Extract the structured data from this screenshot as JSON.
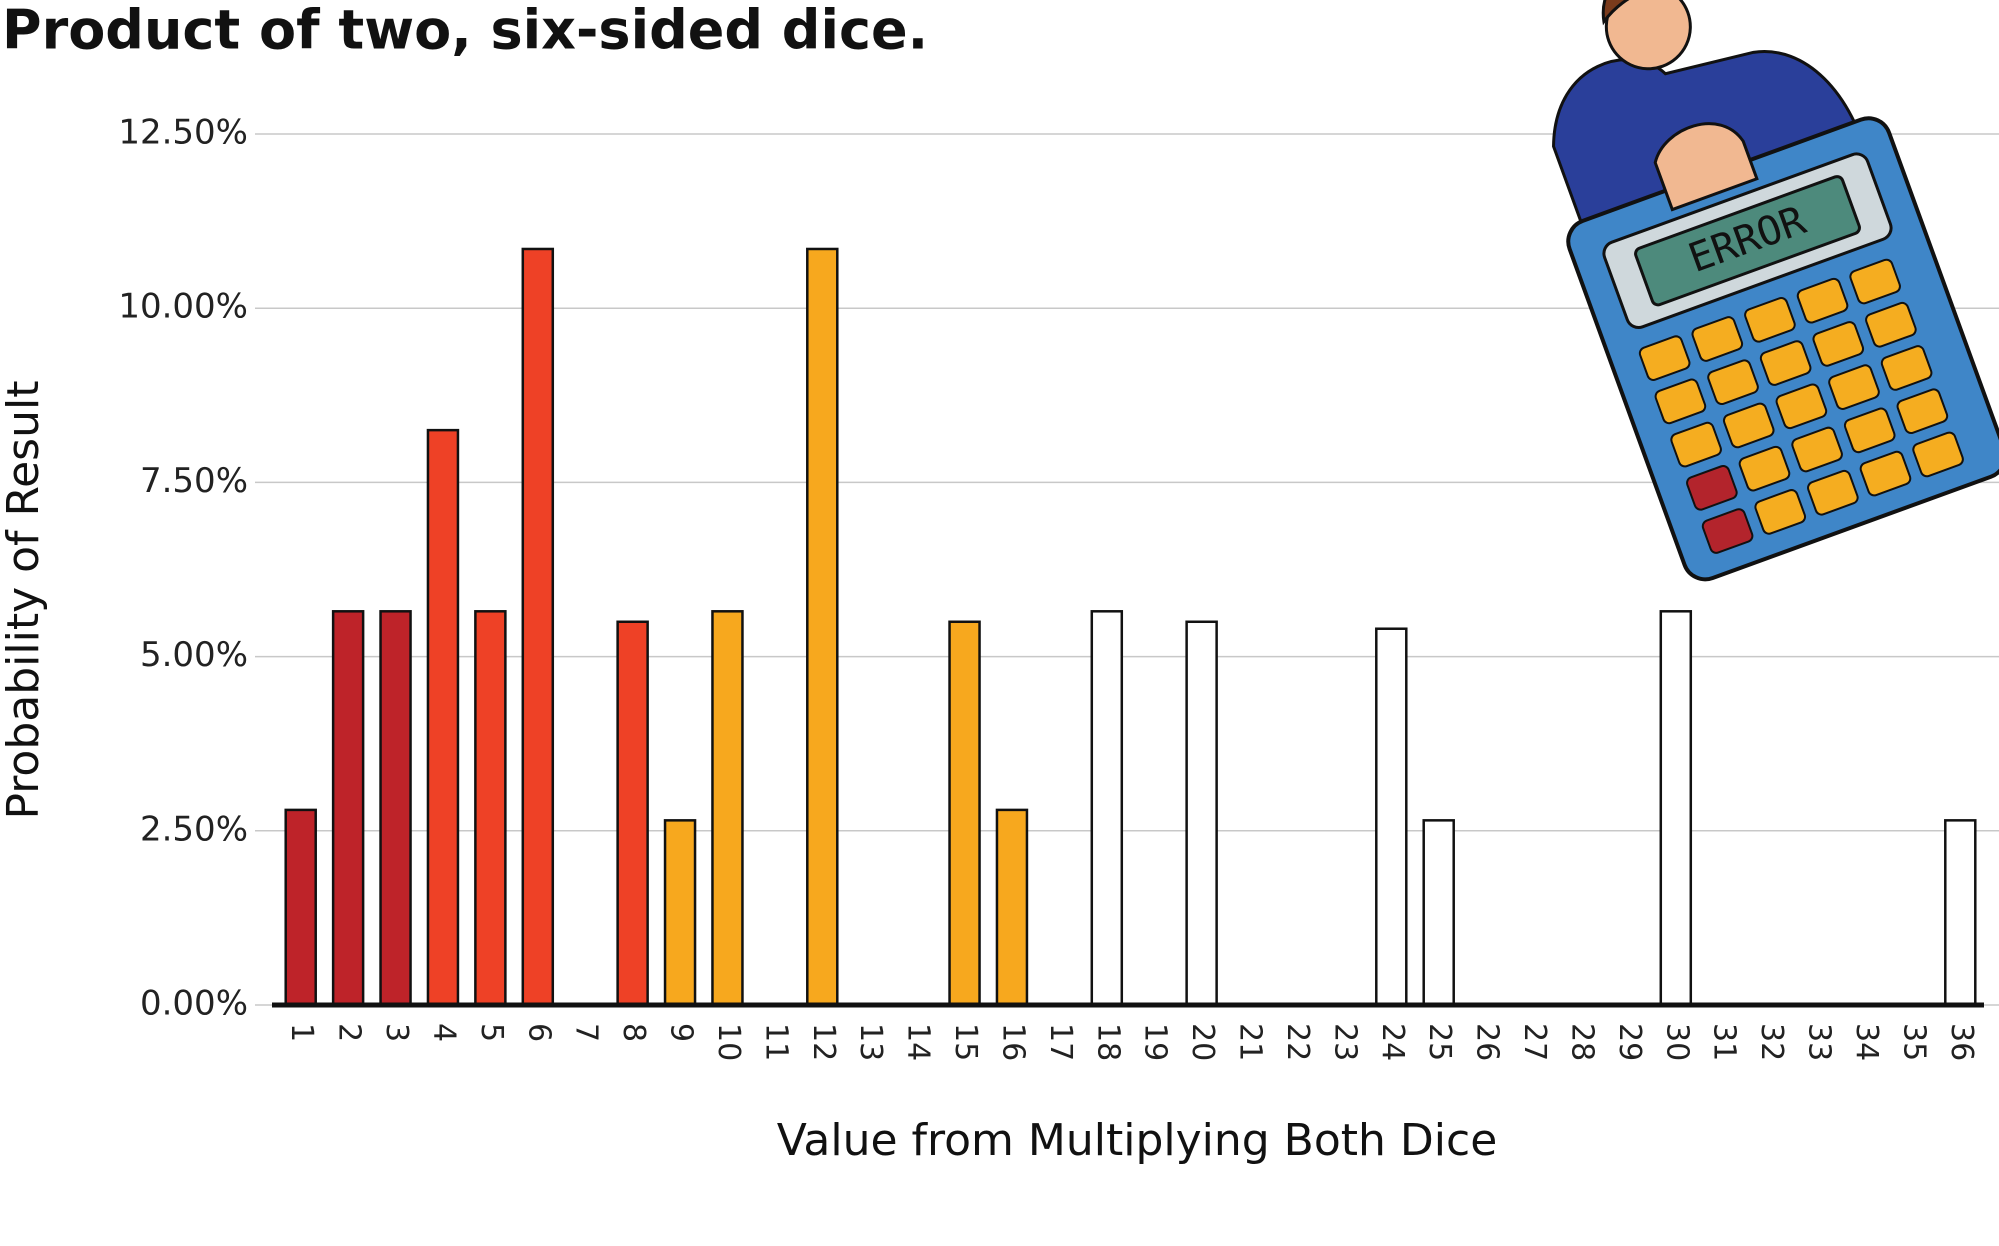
{
  "chart_data": {
    "type": "bar",
    "title": "Product of two, six-sided dice.",
    "x_label": "Value from Multiplying Both Dice",
    "y_label": "Probability of Result",
    "annotation": "ERROR",
    "categories": [
      "1",
      "2",
      "3",
      "4",
      "5",
      "6",
      "7",
      "8",
      "9",
      "10",
      "11",
      "12",
      "13",
      "14",
      "15",
      "16",
      "17",
      "18",
      "19",
      "20",
      "21",
      "22",
      "23",
      "24",
      "25",
      "26",
      "27",
      "28",
      "29",
      "30",
      "31",
      "32",
      "33",
      "34",
      "35",
      "36"
    ],
    "values": [
      2.8,
      5.65,
      5.65,
      8.25,
      5.65,
      10.85,
      0,
      5.5,
      2.65,
      5.65,
      0,
      10.85,
      0,
      0,
      5.5,
      2.8,
      0,
      5.65,
      0,
      5.5,
      0,
      0,
      0,
      5.4,
      2.65,
      0,
      0,
      0,
      0,
      5.65,
      0,
      0,
      0,
      0,
      0,
      2.65
    ],
    "colors": [
      "#be2329",
      "#be2329",
      "#be2329",
      "#ee4126",
      "#ee4126",
      "#ee4126",
      "#ee4126",
      "#ee4126",
      "#f7a81e",
      "#f7a81e",
      "#f7a81e",
      "#f7a81e",
      "#f7a81e",
      "#f7a81e",
      "#f7a81e",
      "#f7a81e",
      "#ffffff",
      "#ffffff",
      "#ffffff",
      "#ffffff",
      "#ffffff",
      "#ffffff",
      "#ffffff",
      "#ffffff",
      "#ffffff",
      "#ffffff",
      "#ffffff",
      "#ffffff",
      "#ffffff",
      "#ffffff",
      "#ffffff",
      "#ffffff",
      "#ffffff",
      "#ffffff",
      "#ffffff",
      "#ffffff"
    ],
    "ylim": [
      0,
      12.5
    ],
    "yticks": [
      {
        "value": 0,
        "label": "0.00%"
      },
      {
        "value": 2.5,
        "label": "2.50%"
      },
      {
        "value": 5,
        "label": "5.00%"
      },
      {
        "value": 7.5,
        "label": "7.50%"
      },
      {
        "value": 10,
        "label": "10.00%"
      },
      {
        "value": 12.5,
        "label": "12.50%"
      }
    ],
    "grid": true
  }
}
